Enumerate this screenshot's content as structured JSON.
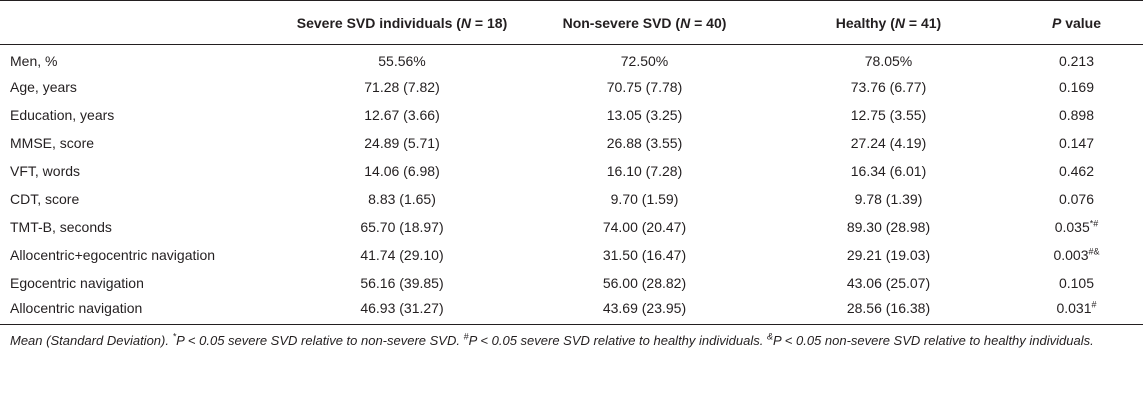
{
  "table": {
    "headers": {
      "col1": {
        "text": "Severe SVD individuals (",
        "n_var": "N",
        "n_val": " = 18)"
      },
      "col2": {
        "text": "Non-severe SVD (",
        "n_var": "N",
        "n_val": " = 40)"
      },
      "col3": {
        "text": "Healthy (",
        "n_var": "N",
        "n_val": " = 41)"
      },
      "col4": {
        "p_var": "P",
        "text": " value"
      }
    },
    "rows": [
      {
        "label": "Men, %",
        "severe": "55.56%",
        "nonsevere": "72.50%",
        "healthy": "78.05%",
        "p": "0.213",
        "sup": ""
      },
      {
        "label": "Age, years",
        "severe": "71.28 (7.82)",
        "nonsevere": "70.75 (7.78)",
        "healthy": "73.76 (6.77)",
        "p": "0.169",
        "sup": ""
      },
      {
        "label": "Education, years",
        "severe": "12.67 (3.66)",
        "nonsevere": "13.05 (3.25)",
        "healthy": "12.75 (3.55)",
        "p": "0.898",
        "sup": ""
      },
      {
        "label": "MMSE, score",
        "severe": "24.89 (5.71)",
        "nonsevere": "26.88 (3.55)",
        "healthy": "27.24 (4.19)",
        "p": "0.147",
        "sup": ""
      },
      {
        "label": "VFT, words",
        "severe": "14.06 (6.98)",
        "nonsevere": "16.10 (7.28)",
        "healthy": "16.34 (6.01)",
        "p": "0.462",
        "sup": ""
      },
      {
        "label": "CDT, score",
        "severe": "8.83 (1.65)",
        "nonsevere": "9.70 (1.59)",
        "healthy": "9.78 (1.39)",
        "p": "0.076",
        "sup": ""
      },
      {
        "label": "TMT-B, seconds",
        "severe": "65.70 (18.97)",
        "nonsevere": "74.00 (20.47)",
        "healthy": "89.30 (28.98)",
        "p": "0.035",
        "sup": "*#"
      },
      {
        "label": "Allocentric+egocentric navigation",
        "severe": "41.74 (29.10)",
        "nonsevere": "31.50 (16.47)",
        "healthy": "29.21 (19.03)",
        "p": "0.003",
        "sup": "#&"
      },
      {
        "label": "Egocentric navigation",
        "severe": "56.16 (39.85)",
        "nonsevere": "56.00 (28.82)",
        "healthy": "43.06 (25.07)",
        "p": "0.105",
        "sup": ""
      },
      {
        "label": "Allocentric navigation",
        "severe": "46.93 (31.27)",
        "nonsevere": "43.69 (23.95)",
        "healthy": "28.56 (16.38)",
        "p": "0.031",
        "sup": "#"
      }
    ]
  },
  "footnote": {
    "intro": "Mean (Standard Deviation). ",
    "s1": "*",
    "t1a": "P",
    "t1b": " < 0.05 severe SVD relative to non-severe SVD. ",
    "s2": "#",
    "t2a": "P",
    "t2b": " < 0.05 severe SVD relative to healthy individuals. ",
    "s3": "&",
    "t3a": "P",
    "t3b": " < 0.05 non-severe SVD relative to healthy individuals."
  }
}
